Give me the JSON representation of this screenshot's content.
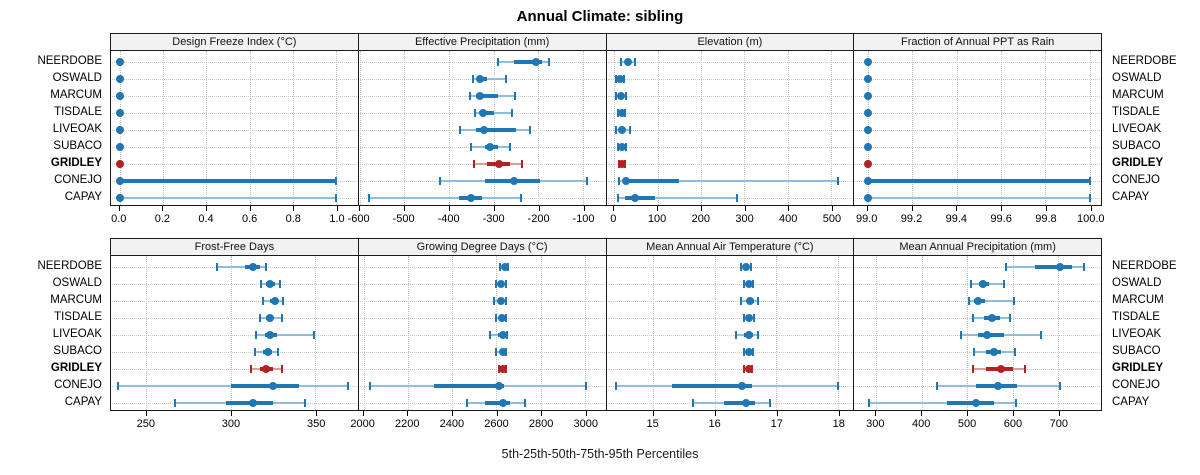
{
  "title": "Annual Climate: sibling",
  "caption": "5th-25th-50th-75th-95th Percentiles",
  "stations": [
    "NEERDOBE",
    "OSWALD",
    "MARCUM",
    "TISDALE",
    "LIVEOAK",
    "SUBACO",
    "GRIDLEY",
    "CONEJO",
    "CAPAY"
  ],
  "highlight_station": "GRIDLEY",
  "percentiles": [
    "5th",
    "25th",
    "50th",
    "75th",
    "95th"
  ],
  "colors": {
    "point_normal": "#1f77b4",
    "whisker_normal": "#8fbedd",
    "point_highlight": "#b22222",
    "whisker_highlight": "#d99e9e",
    "grid": "#c4c4c4",
    "panel_border": "#1a1a1a",
    "header_bg": "#f2f2f2"
  },
  "chart_data": [
    {
      "type": "dot-whisker",
      "band": 0,
      "title": "Design Freeze Index (°C)",
      "axis_domain": [
        -0.04,
        1.1
      ],
      "ticks": [
        0.0,
        0.2,
        0.4,
        0.6,
        0.8,
        1.0
      ],
      "tick_labels": [
        "0.0",
        "0.2",
        "0.4",
        "0.6",
        "0.8",
        "1.0"
      ],
      "values": [
        [
          0,
          0,
          0,
          0,
          0
        ],
        [
          0,
          0,
          0,
          0,
          0
        ],
        [
          0,
          0,
          0,
          0,
          0
        ],
        [
          0,
          0,
          0,
          0,
          0
        ],
        [
          0,
          0,
          0,
          0,
          0
        ],
        [
          0,
          0,
          0,
          0,
          0
        ],
        [
          0,
          0,
          0,
          0,
          0
        ],
        [
          0,
          0,
          0,
          1.0,
          1.0
        ],
        [
          0,
          0,
          0,
          0,
          1.0
        ]
      ]
    },
    {
      "type": "dot-whisker",
      "band": 0,
      "title": "Effective Precipitation (mm)",
      "axis_domain": [
        -602,
        -49
      ],
      "ticks": [
        -600,
        -500,
        -400,
        -300,
        -200,
        -100
      ],
      "tick_labels": [
        "-600",
        "-500",
        "-400",
        "-300",
        "-200",
        "-100"
      ],
      "values": [
        [
          -290,
          -255,
          -204,
          -192,
          -176
        ],
        [
          -345,
          -338,
          -331,
          -315,
          -273
        ],
        [
          -353,
          -340,
          -331,
          -290,
          -252
        ],
        [
          -342,
          -330,
          -324,
          -298,
          -259
        ],
        [
          -375,
          -340,
          -322,
          -250,
          -219
        ],
        [
          -350,
          -318,
          -308,
          -290,
          -263
        ],
        [
          -343,
          -315,
          -288,
          -262,
          -237
        ],
        [
          -420,
          -320,
          -255,
          -195,
          -90
        ],
        [
          -580,
          -378,
          -350,
          -325,
          -238
        ]
      ]
    },
    {
      "type": "dot-whisker",
      "band": 0,
      "title": "Elevation (m)",
      "axis_domain": [
        -18,
        551
      ],
      "ticks": [
        0,
        100,
        200,
        300,
        400,
        500
      ],
      "tick_labels": [
        "0",
        "100",
        "200",
        "300",
        "400",
        "500"
      ],
      "values": [
        [
          15,
          25,
          31,
          38,
          47
        ],
        [
          5,
          10,
          14,
          18,
          22
        ],
        [
          5,
          12,
          16,
          20,
          27
        ],
        [
          8,
          13,
          17,
          20,
          25
        ],
        [
          5,
          12,
          18,
          25,
          37
        ],
        [
          8,
          14,
          18,
          22,
          28
        ],
        [
          10,
          14,
          17,
          20,
          24
        ],
        [
          10,
          20,
          28,
          150,
          515
        ],
        [
          8,
          25,
          48,
          95,
          283
        ]
      ]
    },
    {
      "type": "dot-whisker",
      "band": 0,
      "title": "Fraction of Annual PPT as Rain",
      "axis_domain": [
        98.94,
        100.05
      ],
      "ticks": [
        99.0,
        99.2,
        99.4,
        99.6,
        99.8,
        100.0
      ],
      "tick_labels": [
        "99.0",
        "99.2",
        "99.4",
        "99.6",
        "99.8",
        "100.0"
      ],
      "values": [
        [
          99,
          99,
          99,
          99,
          99
        ],
        [
          99,
          99,
          99,
          99,
          99
        ],
        [
          99,
          99,
          99,
          99,
          99
        ],
        [
          99,
          99,
          99,
          99,
          99
        ],
        [
          99,
          99,
          99,
          99,
          99
        ],
        [
          99,
          99,
          99,
          99,
          99
        ],
        [
          99,
          99,
          99,
          99,
          99
        ],
        [
          99,
          99,
          99,
          100,
          100
        ],
        [
          99,
          99,
          99,
          99,
          100
        ]
      ]
    },
    {
      "type": "dot-whisker",
      "band": 1,
      "title": "Frost-Free Days",
      "axis_domain": [
        229,
        375
      ],
      "ticks": [
        250,
        300,
        350
      ],
      "tick_labels": [
        "250",
        "300",
        "350"
      ],
      "values": [
        [
          292,
          308,
          313,
          317,
          321
        ],
        [
          318,
          321,
          323,
          326,
          329
        ],
        [
          319,
          323,
          326,
          328,
          331
        ],
        [
          317,
          321,
          323,
          325,
          330
        ],
        [
          315,
          320,
          323,
          327,
          349
        ],
        [
          314,
          319,
          322,
          324,
          328
        ],
        [
          312,
          317,
          321,
          325,
          330
        ],
        [
          233,
          300,
          325,
          340,
          369
        ],
        [
          267,
          297,
          313,
          325,
          344
        ]
      ]
    },
    {
      "type": "dot-whisker",
      "band": 1,
      "title": "Growing Degree Days (°C)",
      "axis_domain": [
        1978,
        3093
      ],
      "ticks": [
        2000,
        2200,
        2400,
        2600,
        2800,
        3000
      ],
      "tick_labels": [
        "2000",
        "2200",
        "2400",
        "2600",
        "2800",
        "3000"
      ],
      "values": [
        [
          2618,
          2632,
          2640,
          2647,
          2653
        ],
        [
          2600,
          2615,
          2622,
          2630,
          2642
        ],
        [
          2588,
          2610,
          2622,
          2632,
          2645
        ],
        [
          2598,
          2615,
          2625,
          2635,
          2645
        ],
        [
          2570,
          2605,
          2628,
          2638,
          2648
        ],
        [
          2600,
          2618,
          2628,
          2636,
          2645
        ],
        [
          2612,
          2622,
          2630,
          2638,
          2645
        ],
        [
          2030,
          2320,
          2610,
          2635,
          3005
        ],
        [
          2469,
          2550,
          2630,
          2663,
          2730
        ]
      ]
    },
    {
      "type": "dot-whisker",
      "band": 1,
      "title": "Mean Annual Air Temperature (°C)",
      "axis_domain": [
        14.24,
        18.25
      ],
      "ticks": [
        15,
        16,
        17,
        18
      ],
      "tick_labels": [
        "15",
        "16",
        "17",
        "18"
      ],
      "values": [
        [
          16.42,
          16.48,
          16.51,
          16.55,
          16.59
        ],
        [
          16.48,
          16.52,
          16.55,
          16.58,
          16.62
        ],
        [
          16.42,
          16.52,
          16.58,
          16.63,
          16.7
        ],
        [
          16.47,
          16.52,
          16.56,
          16.59,
          16.63
        ],
        [
          16.35,
          16.48,
          16.55,
          16.62,
          16.7
        ],
        [
          16.47,
          16.52,
          16.55,
          16.58,
          16.62
        ],
        [
          16.48,
          16.52,
          16.55,
          16.58,
          16.61
        ],
        [
          14.4,
          15.3,
          16.45,
          16.6,
          18.0
        ],
        [
          15.65,
          16.15,
          16.5,
          16.65,
          16.9
        ]
      ]
    },
    {
      "type": "dot-whisker",
      "band": 1,
      "title": "Mean Annual Precipitation (mm)",
      "axis_domain": [
        252,
        794
      ],
      "ticks": [
        300,
        400,
        500,
        600,
        700
      ],
      "tick_labels": [
        "300",
        "400",
        "500",
        "600",
        "700"
      ],
      "values": [
        [
          585,
          650,
          705,
          730,
          757
        ],
        [
          508,
          525,
          535,
          548,
          580
        ],
        [
          503,
          515,
          523,
          540,
          603
        ],
        [
          512,
          538,
          555,
          572,
          595
        ],
        [
          487,
          523,
          543,
          580,
          663
        ],
        [
          515,
          542,
          560,
          575,
          605
        ],
        [
          513,
          542,
          575,
          600,
          628
        ],
        [
          433,
          520,
          567,
          610,
          703
        ],
        [
          285,
          455,
          520,
          560,
          608
        ]
      ]
    }
  ]
}
